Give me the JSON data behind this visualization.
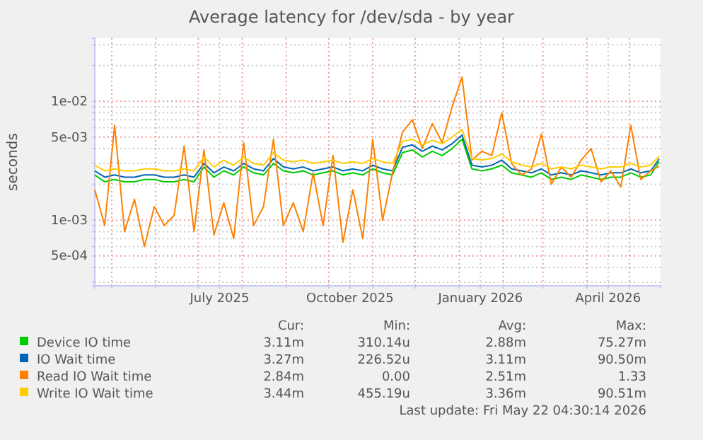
{
  "chart_data": {
    "type": "line",
    "title": "Average latency for /dev/sda - by year",
    "ylabel": "seconds",
    "log": "y",
    "grid": true,
    "legend": "bottom",
    "marker": "none",
    "line_style": "solid",
    "xlim": [
      "2025-04-19",
      "2026-05-23"
    ],
    "xticks": [
      {
        "value": "2025-05-01",
        "label": null
      },
      {
        "value": "2025-06-01",
        "label": null
      },
      {
        "value": "2025-07-01",
        "label": null
      },
      {
        "value": "2025-07-16",
        "label": "July 2025"
      },
      {
        "value": "2025-08-01",
        "label": null
      },
      {
        "value": "2025-09-01",
        "label": null
      },
      {
        "value": "2025-10-01",
        "label": null
      },
      {
        "value": "2025-10-16",
        "label": "October 2025"
      },
      {
        "value": "2025-11-01",
        "label": null
      },
      {
        "value": "2025-12-01",
        "label": null
      },
      {
        "value": "2026-01-01",
        "label": null
      },
      {
        "value": "2026-01-16",
        "label": "January 2026"
      },
      {
        "value": "2026-02-01",
        "label": null
      },
      {
        "value": "2026-03-01",
        "label": null
      },
      {
        "value": "2026-04-01",
        "label": null
      },
      {
        "value": "2026-04-16",
        "label": "April 2026"
      },
      {
        "value": "2026-05-01",
        "label": null
      }
    ],
    "ylim": [
      0.00028,
      0.034
    ],
    "yticks": [
      {
        "value": 0.0003,
        "label": null
      },
      {
        "value": 0.0004,
        "label": null
      },
      {
        "value": 0.0005,
        "label": "5e-04"
      },
      {
        "value": 0.0006,
        "label": null
      },
      {
        "value": 0.0007,
        "label": null
      },
      {
        "value": 0.0008,
        "label": null
      },
      {
        "value": 0.0009,
        "label": null
      },
      {
        "value": 0.001,
        "label": "1e-03"
      },
      {
        "value": 0.002,
        "label": null
      },
      {
        "value": 0.003,
        "label": null
      },
      {
        "value": 0.004,
        "label": null
      },
      {
        "value": 0.005,
        "label": "5e-03"
      },
      {
        "value": 0.006,
        "label": null
      },
      {
        "value": 0.007,
        "label": null
      },
      {
        "value": 0.008,
        "label": null
      },
      {
        "value": 0.009,
        "label": null
      },
      {
        "value": 0.01,
        "label": "1e-02"
      },
      {
        "value": 0.02,
        "label": null
      },
      {
        "value": 0.03,
        "label": null
      }
    ],
    "x": [
      "2025-04-19",
      "2025-04-26",
      "2025-05-03",
      "2025-05-10",
      "2025-05-17",
      "2025-05-24",
      "2025-05-31",
      "2025-06-07",
      "2025-06-14",
      "2025-06-21",
      "2025-06-28",
      "2025-07-05",
      "2025-07-12",
      "2025-07-19",
      "2025-07-26",
      "2025-08-02",
      "2025-08-09",
      "2025-08-16",
      "2025-08-23",
      "2025-08-30",
      "2025-09-06",
      "2025-09-13",
      "2025-09-20",
      "2025-09-27",
      "2025-10-04",
      "2025-10-11",
      "2025-10-18",
      "2025-10-25",
      "2025-11-01",
      "2025-11-08",
      "2025-11-15",
      "2025-11-22",
      "2025-11-29",
      "2025-12-06",
      "2025-12-13",
      "2025-12-20",
      "2025-12-27",
      "2026-01-03",
      "2026-01-10",
      "2026-01-17",
      "2026-01-24",
      "2026-01-31",
      "2026-02-07",
      "2026-02-14",
      "2026-02-21",
      "2026-02-28",
      "2026-03-07",
      "2026-03-14",
      "2026-03-21",
      "2026-03-28",
      "2026-04-04",
      "2026-04-11",
      "2026-04-18",
      "2026-04-25",
      "2026-05-02",
      "2026-05-09",
      "2026-05-16",
      "2026-05-22"
    ],
    "series": [
      {
        "name": "Device IO time",
        "color": "#00cc00",
        "values": [
          0.0024,
          0.0021,
          0.0022,
          0.0021,
          0.0021,
          0.0022,
          0.0022,
          0.0021,
          0.0021,
          0.0022,
          0.0021,
          0.0028,
          0.0023,
          0.0026,
          0.0024,
          0.0028,
          0.0025,
          0.0024,
          0.003,
          0.0026,
          0.0025,
          0.0026,
          0.0024,
          0.0025,
          0.0026,
          0.0024,
          0.0025,
          0.0024,
          0.0027,
          0.0025,
          0.0024,
          0.0037,
          0.0039,
          0.0034,
          0.0038,
          0.0035,
          0.004,
          0.0048,
          0.0027,
          0.0026,
          0.0027,
          0.0029,
          0.0025,
          0.0024,
          0.0023,
          0.0025,
          0.0022,
          0.0023,
          0.0022,
          0.0024,
          0.0023,
          0.0022,
          0.0023,
          0.0023,
          0.0025,
          0.0023,
          0.0024,
          0.00311
        ]
      },
      {
        "name": "IO Wait time",
        "color": "#0066b3",
        "values": [
          0.0026,
          0.0023,
          0.0024,
          0.0023,
          0.0023,
          0.0024,
          0.0024,
          0.0023,
          0.0023,
          0.0024,
          0.0023,
          0.003,
          0.0025,
          0.0028,
          0.0026,
          0.003,
          0.0027,
          0.0026,
          0.0033,
          0.0028,
          0.0027,
          0.0028,
          0.0026,
          0.0027,
          0.0028,
          0.0026,
          0.0027,
          0.0026,
          0.0029,
          0.0027,
          0.0026,
          0.0041,
          0.0043,
          0.0038,
          0.0042,
          0.0039,
          0.0044,
          0.0052,
          0.0029,
          0.0028,
          0.0029,
          0.0032,
          0.0027,
          0.0026,
          0.0025,
          0.0027,
          0.0024,
          0.0025,
          0.0024,
          0.0026,
          0.0025,
          0.0024,
          0.0025,
          0.0025,
          0.0027,
          0.0025,
          0.0026,
          0.00327
        ]
      },
      {
        "name": "Read IO Wait time",
        "color": "#ff8000",
        "values": [
          0.0018,
          0.0009,
          0.0063,
          0.0008,
          0.0015,
          0.0006,
          0.0013,
          0.0009,
          0.0011,
          0.0042,
          0.0008,
          0.0039,
          0.00075,
          0.0014,
          0.0007,
          0.0045,
          0.0009,
          0.0013,
          0.0048,
          0.0009,
          0.0014,
          0.0008,
          0.0025,
          0.0009,
          0.0035,
          0.00065,
          0.0018,
          0.0007,
          0.0048,
          0.001,
          0.0025,
          0.0055,
          0.007,
          0.004,
          0.0065,
          0.0045,
          0.009,
          0.016,
          0.0032,
          0.0038,
          0.0035,
          0.008,
          0.003,
          0.0024,
          0.0027,
          0.0053,
          0.002,
          0.0028,
          0.0023,
          0.0032,
          0.004,
          0.0021,
          0.0026,
          0.0019,
          0.0063,
          0.0022,
          0.0026,
          0.00284
        ]
      },
      {
        "name": "Write IO Wait time",
        "color": "#ffcc00",
        "values": [
          0.0029,
          0.0026,
          0.0027,
          0.0026,
          0.0026,
          0.0027,
          0.0027,
          0.0026,
          0.0026,
          0.0027,
          0.0026,
          0.0034,
          0.0028,
          0.0032,
          0.0029,
          0.0034,
          0.003,
          0.0029,
          0.0037,
          0.0032,
          0.0031,
          0.0032,
          0.003,
          0.0031,
          0.0032,
          0.003,
          0.0031,
          0.003,
          0.0033,
          0.0031,
          0.003,
          0.0046,
          0.0048,
          0.0043,
          0.0047,
          0.0044,
          0.005,
          0.0058,
          0.0033,
          0.0032,
          0.0033,
          0.0036,
          0.0031,
          0.0029,
          0.0028,
          0.003,
          0.0027,
          0.0028,
          0.0027,
          0.0029,
          0.0028,
          0.0027,
          0.0028,
          0.0028,
          0.003,
          0.0028,
          0.0029,
          0.00344
        ]
      }
    ],
    "annotations": [
      "Cur:",
      "Min:",
      "Avg:",
      "Max:",
      "3.11m",
      "310.14u",
      "2.88m",
      "75.27m",
      "3.27m",
      "226.52u",
      "3.11m",
      "90.50m",
      "2.84m",
      "0.00",
      "2.51m",
      "1.33",
      "3.44m",
      "455.19u",
      "3.36m",
      "90.51m",
      "Last update: Fri May 22 04:30:14 2026"
    ]
  }
}
